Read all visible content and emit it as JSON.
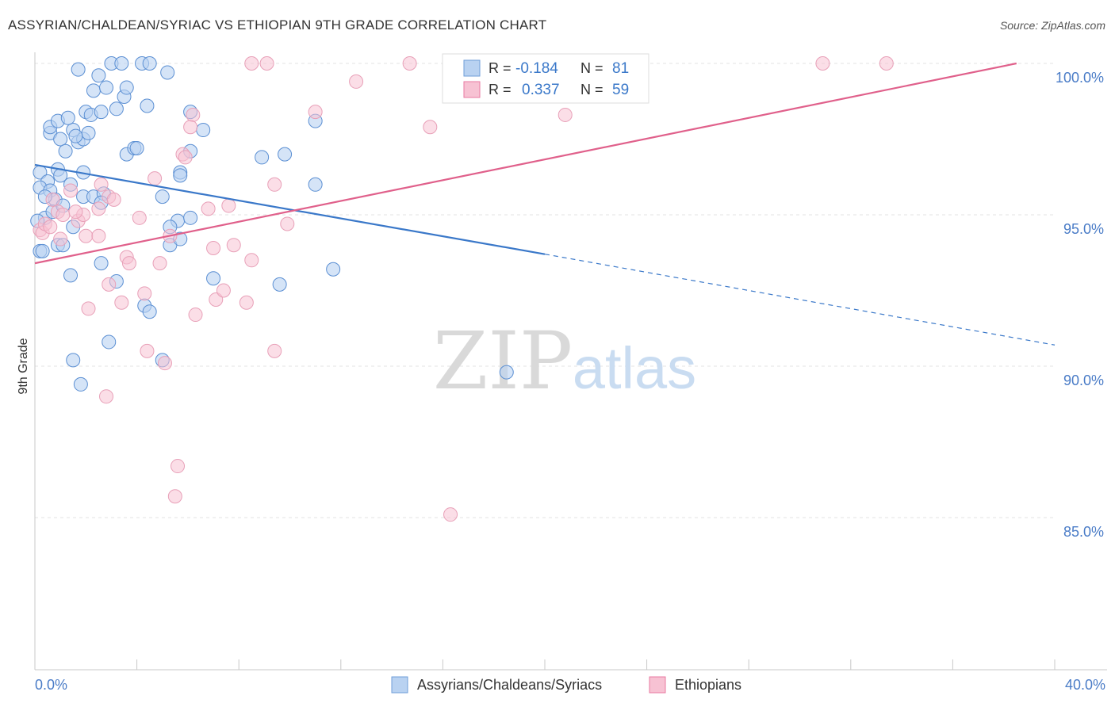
{
  "title": "ASSYRIAN/CHALDEAN/SYRIAC VS ETHIOPIAN 9TH GRADE CORRELATION CHART",
  "source": "Source: ZipAtlas.com",
  "watermark": {
    "zip": "ZIP",
    "atlas": "atlas"
  },
  "legend_top": {
    "r_label": "R =",
    "n_label": "N =",
    "rows": [
      {
        "r": "-0.184",
        "n": "81",
        "color": "#6f9ed8",
        "fill": "#b9d2f1"
      },
      {
        "r": "0.337",
        "n": "59",
        "color": "#e87aa0",
        "fill": "#f7c2d3"
      }
    ]
  },
  "legend_bottom": [
    {
      "label": "Assyrians/Chaldeans/Syriacs",
      "fill": "#b9d2f1",
      "stroke": "#6f9ed8"
    },
    {
      "label": "Ethiopians",
      "fill": "#f7c2d3",
      "stroke": "#e87aa0"
    }
  ],
  "chart_data": {
    "type": "scatter",
    "title": "ASSYRIAN/CHALDEAN/SYRIAC VS ETHIOPIAN 9TH GRADE CORRELATION CHART",
    "xlabel": "",
    "ylabel": "9th Grade",
    "xlim": [
      0,
      40
    ],
    "ylim": [
      80.5,
      100.5
    ],
    "x_tick_labels": [
      "0.0%",
      "40.0%"
    ],
    "y_ticks": [
      85,
      90,
      95,
      100
    ],
    "y_tick_labels": [
      "85.0%",
      "90.0%",
      "95.0%",
      "100.0%"
    ],
    "grid": true,
    "legend_position": "top-center",
    "colors": {
      "blue": "#3a78c9",
      "blue_fill": "#b9d2f1",
      "pink": "#e0608b",
      "pink_fill": "#f7c2d3",
      "tick_label": "#4a7cc7"
    },
    "series": [
      {
        "name": "Assyrians/Chaldeans/Syriacs",
        "r": -0.184,
        "n": 81,
        "trend": {
          "x0": 0,
          "y0": 96.65,
          "x_solid_end": 20,
          "y_solid_end": 93.7,
          "x1": 40,
          "y1": 90.7
        },
        "points": [
          [
            0.2,
            96.4
          ],
          [
            0.5,
            96.1
          ],
          [
            0.2,
            95.9
          ],
          [
            0.6,
            95.8
          ],
          [
            0.8,
            95.5
          ],
          [
            0.4,
            94.9
          ],
          [
            0.1,
            94.8
          ],
          [
            0.2,
            93.8
          ],
          [
            0.3,
            93.8
          ],
          [
            0.9,
            94.0
          ],
          [
            1.1,
            94.0
          ],
          [
            0.7,
            95.1
          ],
          [
            1.1,
            95.3
          ],
          [
            1.5,
            94.6
          ],
          [
            0.9,
            96.5
          ],
          [
            1.4,
            96.0
          ],
          [
            1.9,
            95.6
          ],
          [
            2.3,
            95.6
          ],
          [
            2.7,
            95.7
          ],
          [
            2.6,
            95.4
          ],
          [
            0.6,
            97.7
          ],
          [
            1.0,
            97.5
          ],
          [
            0.6,
            97.9
          ],
          [
            1.2,
            97.1
          ],
          [
            1.5,
            97.8
          ],
          [
            1.7,
            97.4
          ],
          [
            1.9,
            97.5
          ],
          [
            2.1,
            97.7
          ],
          [
            0.9,
            98.1
          ],
          [
            1.3,
            98.2
          ],
          [
            2.0,
            98.4
          ],
          [
            2.2,
            98.3
          ],
          [
            2.6,
            98.4
          ],
          [
            3.2,
            98.5
          ],
          [
            1.9,
            96.4
          ],
          [
            1.6,
            97.6
          ],
          [
            1.7,
            99.8
          ],
          [
            2.3,
            99.1
          ],
          [
            2.5,
            99.6
          ],
          [
            2.8,
            99.2
          ],
          [
            3.0,
            100.0
          ],
          [
            3.4,
            100.0
          ],
          [
            3.5,
            98.9
          ],
          [
            3.6,
            99.2
          ],
          [
            4.2,
            100.0
          ],
          [
            4.5,
            100.0
          ],
          [
            5.2,
            99.7
          ],
          [
            4.4,
            98.6
          ],
          [
            3.6,
            97.0
          ],
          [
            3.9,
            97.2
          ],
          [
            4.0,
            97.2
          ],
          [
            5.7,
            96.4
          ],
          [
            5.7,
            96.3
          ],
          [
            6.1,
            97.1
          ],
          [
            6.6,
            97.8
          ],
          [
            6.1,
            98.4
          ],
          [
            5.0,
            95.6
          ],
          [
            5.6,
            94.8
          ],
          [
            6.1,
            94.9
          ],
          [
            5.3,
            94.6
          ],
          [
            5.3,
            94.0
          ],
          [
            5.7,
            94.2
          ],
          [
            4.3,
            92.0
          ],
          [
            4.5,
            91.8
          ],
          [
            5.0,
            90.2
          ],
          [
            3.2,
            92.8
          ],
          [
            2.9,
            90.8
          ],
          [
            1.5,
            90.2
          ],
          [
            1.8,
            89.4
          ],
          [
            1.4,
            93.0
          ],
          [
            7.0,
            92.9
          ],
          [
            8.9,
            96.9
          ],
          [
            9.6,
            92.7
          ],
          [
            9.8,
            97.0
          ],
          [
            11.0,
            96.0
          ],
          [
            11.0,
            98.1
          ],
          [
            11.7,
            93.2
          ],
          [
            18.5,
            89.8
          ],
          [
            0.4,
            95.6
          ],
          [
            1.0,
            96.3
          ],
          [
            2.6,
            93.4
          ]
        ]
      },
      {
        "name": "Ethiopians",
        "r": 0.337,
        "n": 59,
        "trend": {
          "x0": 0,
          "y0": 93.4,
          "x1": 38.5,
          "y1": 100.0
        },
        "points": [
          [
            0.2,
            94.5
          ],
          [
            0.3,
            94.4
          ],
          [
            0.4,
            94.7
          ],
          [
            0.6,
            94.6
          ],
          [
            0.7,
            95.5
          ],
          [
            0.9,
            95.1
          ],
          [
            1.1,
            95.0
          ],
          [
            1.4,
            95.8
          ],
          [
            1.7,
            94.8
          ],
          [
            1.9,
            95.0
          ],
          [
            2.0,
            94.3
          ],
          [
            2.5,
            95.2
          ],
          [
            2.6,
            96.0
          ],
          [
            2.5,
            94.3
          ],
          [
            2.9,
            95.6
          ],
          [
            3.1,
            95.5
          ],
          [
            3.6,
            93.6
          ],
          [
            3.7,
            93.4
          ],
          [
            4.1,
            94.9
          ],
          [
            4.7,
            96.2
          ],
          [
            4.9,
            93.4
          ],
          [
            5.3,
            94.3
          ],
          [
            5.8,
            97.0
          ],
          [
            5.9,
            96.9
          ],
          [
            6.2,
            98.3
          ],
          [
            6.1,
            97.9
          ],
          [
            6.8,
            95.2
          ],
          [
            7.6,
            95.3
          ],
          [
            7.0,
            93.9
          ],
          [
            7.8,
            94.0
          ],
          [
            8.5,
            93.5
          ],
          [
            9.4,
            96.0
          ],
          [
            9.9,
            94.7
          ],
          [
            7.1,
            92.2
          ],
          [
            7.4,
            92.5
          ],
          [
            8.3,
            92.1
          ],
          [
            6.3,
            91.7
          ],
          [
            4.3,
            92.4
          ],
          [
            3.4,
            92.1
          ],
          [
            2.9,
            92.7
          ],
          [
            2.1,
            91.9
          ],
          [
            2.8,
            89.0
          ],
          [
            4.4,
            90.5
          ],
          [
            5.1,
            90.1
          ],
          [
            5.5,
            85.7
          ],
          [
            5.6,
            86.7
          ],
          [
            9.4,
            90.5
          ],
          [
            8.5,
            100.0
          ],
          [
            9.1,
            100.0
          ],
          [
            12.6,
            99.4
          ],
          [
            11.0,
            98.4
          ],
          [
            14.7,
            100.0
          ],
          [
            15.5,
            97.9
          ],
          [
            16.3,
            85.1
          ],
          [
            20.8,
            98.3
          ],
          [
            30.9,
            100.0
          ],
          [
            33.4,
            100.0
          ],
          [
            1.0,
            94.2
          ],
          [
            1.6,
            95.1
          ]
        ]
      }
    ]
  }
}
